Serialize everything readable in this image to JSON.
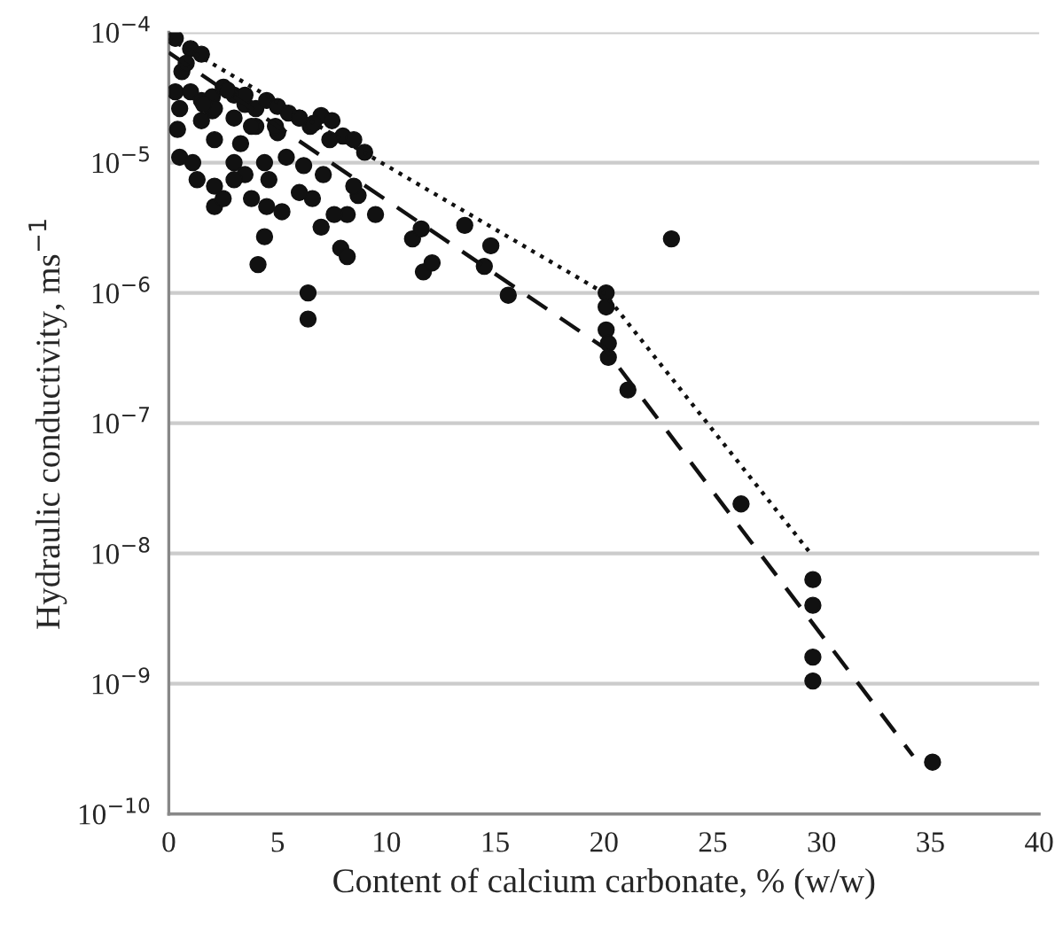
{
  "chart_data": {
    "type": "scatter",
    "xlabel": "Content of calcium carbonate, % (w/w)",
    "ylabel": "Hydraulic conductivity, ms$^{−1}$",
    "log": "y",
    "grid": "y",
    "legend": false,
    "xlim": [
      0,
      40
    ],
    "xticks": [
      0,
      5,
      10,
      15,
      20,
      25,
      30,
      35,
      40
    ],
    "ylim": [
      1e-10,
      0.0001
    ],
    "yticks": [
      {
        "value": 1e-10,
        "label": "10$^{−10}$"
      },
      {
        "value": 1e-09,
        "label": "10$^{−9}$"
      },
      {
        "value": 1e-08,
        "label": "10$^{−8}$"
      },
      {
        "value": 1e-07,
        "label": "10$^{−7}$"
      },
      {
        "value": 1e-06,
        "label": "10$^{−6}$"
      },
      {
        "value": 1e-05,
        "label": "10$^{−5}$"
      },
      {
        "value": 0.0001,
        "label": "10$^{−4}$"
      }
    ],
    "series": [
      {
        "color": "#111111",
        "marker": "circle",
        "x": [
          0.3,
          1.0,
          0.6,
          0.3,
          1.5,
          0.8,
          1,
          1.5,
          2,
          2.5,
          3,
          3.5,
          4,
          4.5,
          5,
          5.5,
          6,
          6.5,
          7,
          7.5,
          8,
          8.5,
          9,
          3,
          2,
          1.5,
          4,
          5,
          6.65,
          7.4,
          13.6,
          14.8,
          14.5,
          15.6,
          11.2,
          11.6,
          11.7,
          12.1,
          6.4,
          6.4,
          4.1,
          4.4,
          7.9,
          8.2,
          9.5,
          8.2,
          7.6,
          7.0,
          8.7,
          8.5,
          6.6,
          6.0,
          5.2,
          4.5,
          3.8,
          2.1,
          2.5,
          1.3,
          0.5,
          0.4,
          0.5,
          2.7,
          3.5,
          6.0,
          4.9,
          3.8,
          2.1,
          1.6,
          2.1,
          3.3,
          4.4,
          5.4,
          6.2,
          7.1,
          1.1,
          3.0,
          3.5,
          2.1,
          4.6,
          3.0,
          23.1,
          20.1,
          20.1,
          20.1,
          20.2,
          20.2,
          21.1,
          26.3,
          29.6,
          29.6,
          29.6,
          29.6,
          35.1
        ],
        "values": [
          9e-05,
          7.5e-05,
          5e-05,
          3.5e-05,
          6.8e-05,
          5.8e-05,
          3.5e-05,
          3e-05,
          3.2e-05,
          3.8e-05,
          3.3e-05,
          2.8e-05,
          2.6e-05,
          3e-05,
          2.7e-05,
          2.4e-05,
          2.2e-05,
          1.9e-05,
          2.3e-05,
          2.1e-05,
          1.6e-05,
          1.5e-05,
          1.2e-05,
          2.2e-05,
          2.5e-05,
          2.1e-05,
          1.9e-05,
          1.7e-05,
          2e-05,
          1.5e-05,
          3.3e-06,
          2.3e-06,
          1.6e-06,
          9.6e-07,
          2.6e-06,
          3.1e-06,
          1.45e-06,
          1.7e-06,
          1e-06,
          6.3e-07,
          1.65e-06,
          2.7e-06,
          2.2e-06,
          1.9e-06,
          4e-06,
          4e-06,
          4e-06,
          3.2e-06,
          5.6e-06,
          6.6e-06,
          5.3e-06,
          5.9e-06,
          4.2e-06,
          4.6e-06,
          5.3e-06,
          4.6e-06,
          5.3e-06,
          7.4e-06,
          1.1e-05,
          1.8e-05,
          2.6e-05,
          3.6e-05,
          3.3e-05,
          2.2e-05,
          1.9e-05,
          1.9e-05,
          2.6e-05,
          2.8e-05,
          1.5e-05,
          1.4e-05,
          1e-05,
          1.1e-05,
          9.5e-06,
          8.1e-06,
          1e-05,
          1e-05,
          8.1e-06,
          6.6e-06,
          7.4e-06,
          7.4e-06,
          2.6e-06,
          1e-06,
          7.8e-07,
          5.2e-07,
          4.1e-07,
          3.2e-07,
          1.8e-07,
          2.4e-08,
          6.3e-09,
          4e-09,
          1.6e-09,
          1.05e-09,
          2.5e-10
        ]
      },
      {
        "type": "line",
        "color": "#111111",
        "line_style": "dotted",
        "marker": "none",
        "x": [
          0,
          20,
          29.5
        ],
        "values": [
          9e-05,
          1e-06,
          1e-08
        ]
      },
      {
        "type": "line",
        "color": "#111111",
        "line_style": "dashed",
        "marker": "none",
        "x": [
          0,
          20,
          34.2
        ],
        "values": [
          7e-05,
          3.8e-07,
          2.8e-10
        ]
      }
    ]
  }
}
